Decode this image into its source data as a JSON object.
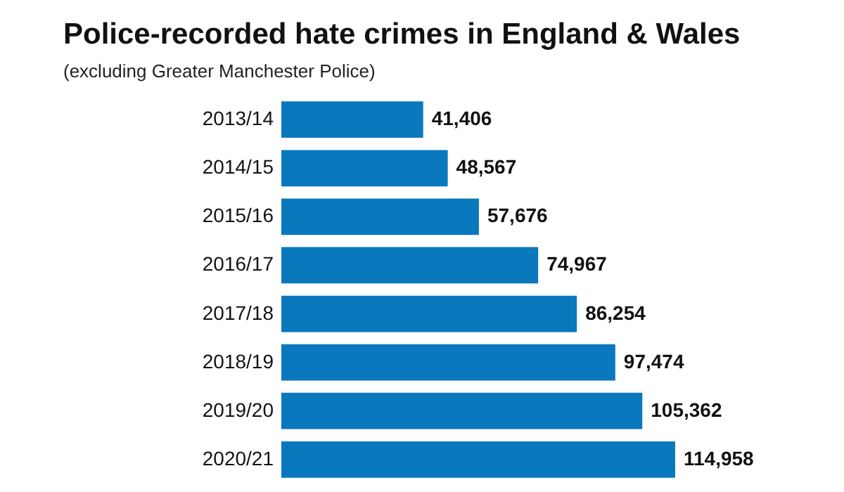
{
  "chart_data": {
    "type": "bar",
    "orientation": "horizontal",
    "title": "Police-recorded hate crimes in England & Wales",
    "subtitle": "(excluding Greater Manchester Police)",
    "categories": [
      "2013/14",
      "2014/15",
      "2015/16",
      "2016/17",
      "2017/18",
      "2018/19",
      "2019/20",
      "2020/21"
    ],
    "values": [
      41406,
      48567,
      57676,
      74967,
      86254,
      97474,
      105362,
      114958
    ],
    "value_labels": [
      "41,406",
      "48,567",
      "57,676",
      "74,967",
      "86,254",
      "97,474",
      "105,362",
      "114,958"
    ],
    "color": "#0a78bd",
    "tick_labels": "y"
  }
}
